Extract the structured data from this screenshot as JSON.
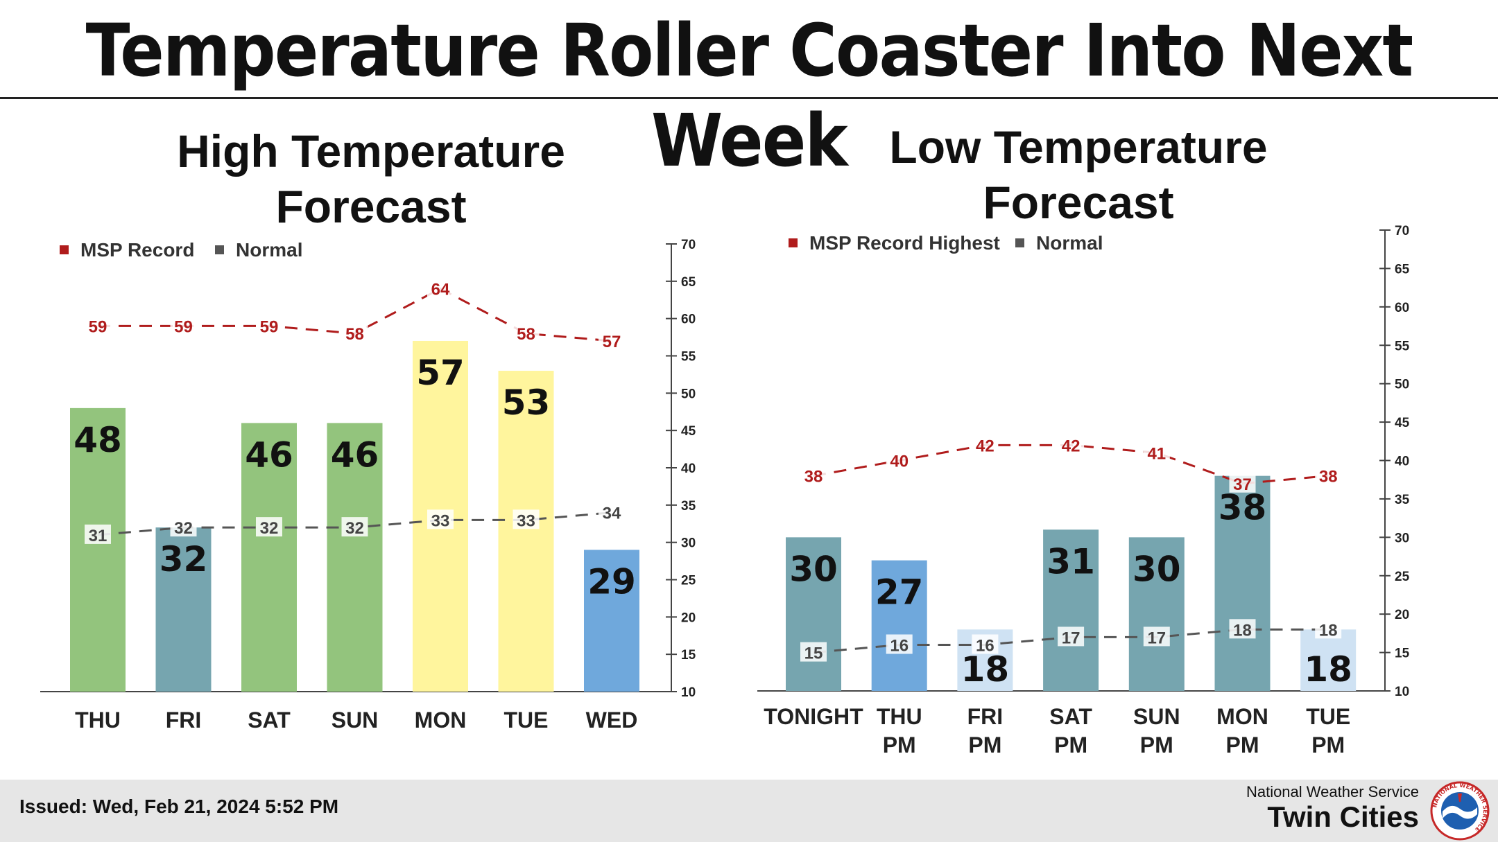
{
  "title": "Temperature Roller Coaster Into Next Week",
  "footer": {
    "issued": "Issued: Wed, Feb 21, 2024 5:52 PM",
    "org": "National Weather Service",
    "office": "Twin Cities",
    "logo_text": "NATIONAL WEATHER SERVICE"
  },
  "colors": {
    "record": "#b01c1c",
    "normal": "#555555",
    "green": "#93c47d",
    "teal": "#76a5af",
    "yellow": "#fff59d",
    "blue": "#6fa8dc",
    "lightblue": "#cfe2f3"
  },
  "chart_data": [
    {
      "type": "bar",
      "title": "High Temperature Forecast",
      "categories": [
        "THU",
        "FRI",
        "SAT",
        "SUN",
        "MON",
        "TUE",
        "WED"
      ],
      "values": [
        48,
        32,
        46,
        46,
        57,
        53,
        29
      ],
      "bar_colors": [
        "green",
        "teal",
        "green",
        "green",
        "yellow",
        "yellow",
        "blue"
      ],
      "series": [
        {
          "name": "MSP Record",
          "values": [
            59,
            59,
            59,
            58,
            64,
            58,
            57
          ]
        },
        {
          "name": "Normal",
          "values": [
            31,
            32,
            32,
            32,
            33,
            33,
            34
          ]
        }
      ],
      "ylim": [
        10,
        70
      ],
      "yticks": [
        10,
        15,
        20,
        25,
        30,
        35,
        40,
        45,
        50,
        55,
        60,
        65,
        70
      ],
      "legend": "top-left",
      "grid": false
    },
    {
      "type": "bar",
      "title": "Low Temperature Forecast",
      "categories": [
        [
          "TONIGHT"
        ],
        [
          "THU",
          "PM"
        ],
        [
          "FRI",
          "PM"
        ],
        [
          "SAT",
          "PM"
        ],
        [
          "SUN",
          "PM"
        ],
        [
          "MON",
          "PM"
        ],
        [
          "TUE",
          "PM"
        ]
      ],
      "values": [
        30,
        27,
        18,
        31,
        30,
        38,
        18
      ],
      "bar_colors": [
        "teal",
        "blue",
        "lightblue",
        "teal",
        "teal",
        "teal",
        "lightblue"
      ],
      "series": [
        {
          "name": "MSP Record Highest",
          "values": [
            38,
            40,
            42,
            42,
            41,
            37,
            38
          ]
        },
        {
          "name": "Normal",
          "values": [
            15,
            16,
            16,
            17,
            17,
            18,
            18
          ]
        }
      ],
      "ylim": [
        10,
        70
      ],
      "yticks": [
        10,
        15,
        20,
        25,
        30,
        35,
        40,
        45,
        50,
        55,
        60,
        65,
        70
      ],
      "legend": "top-left",
      "grid": false
    }
  ]
}
